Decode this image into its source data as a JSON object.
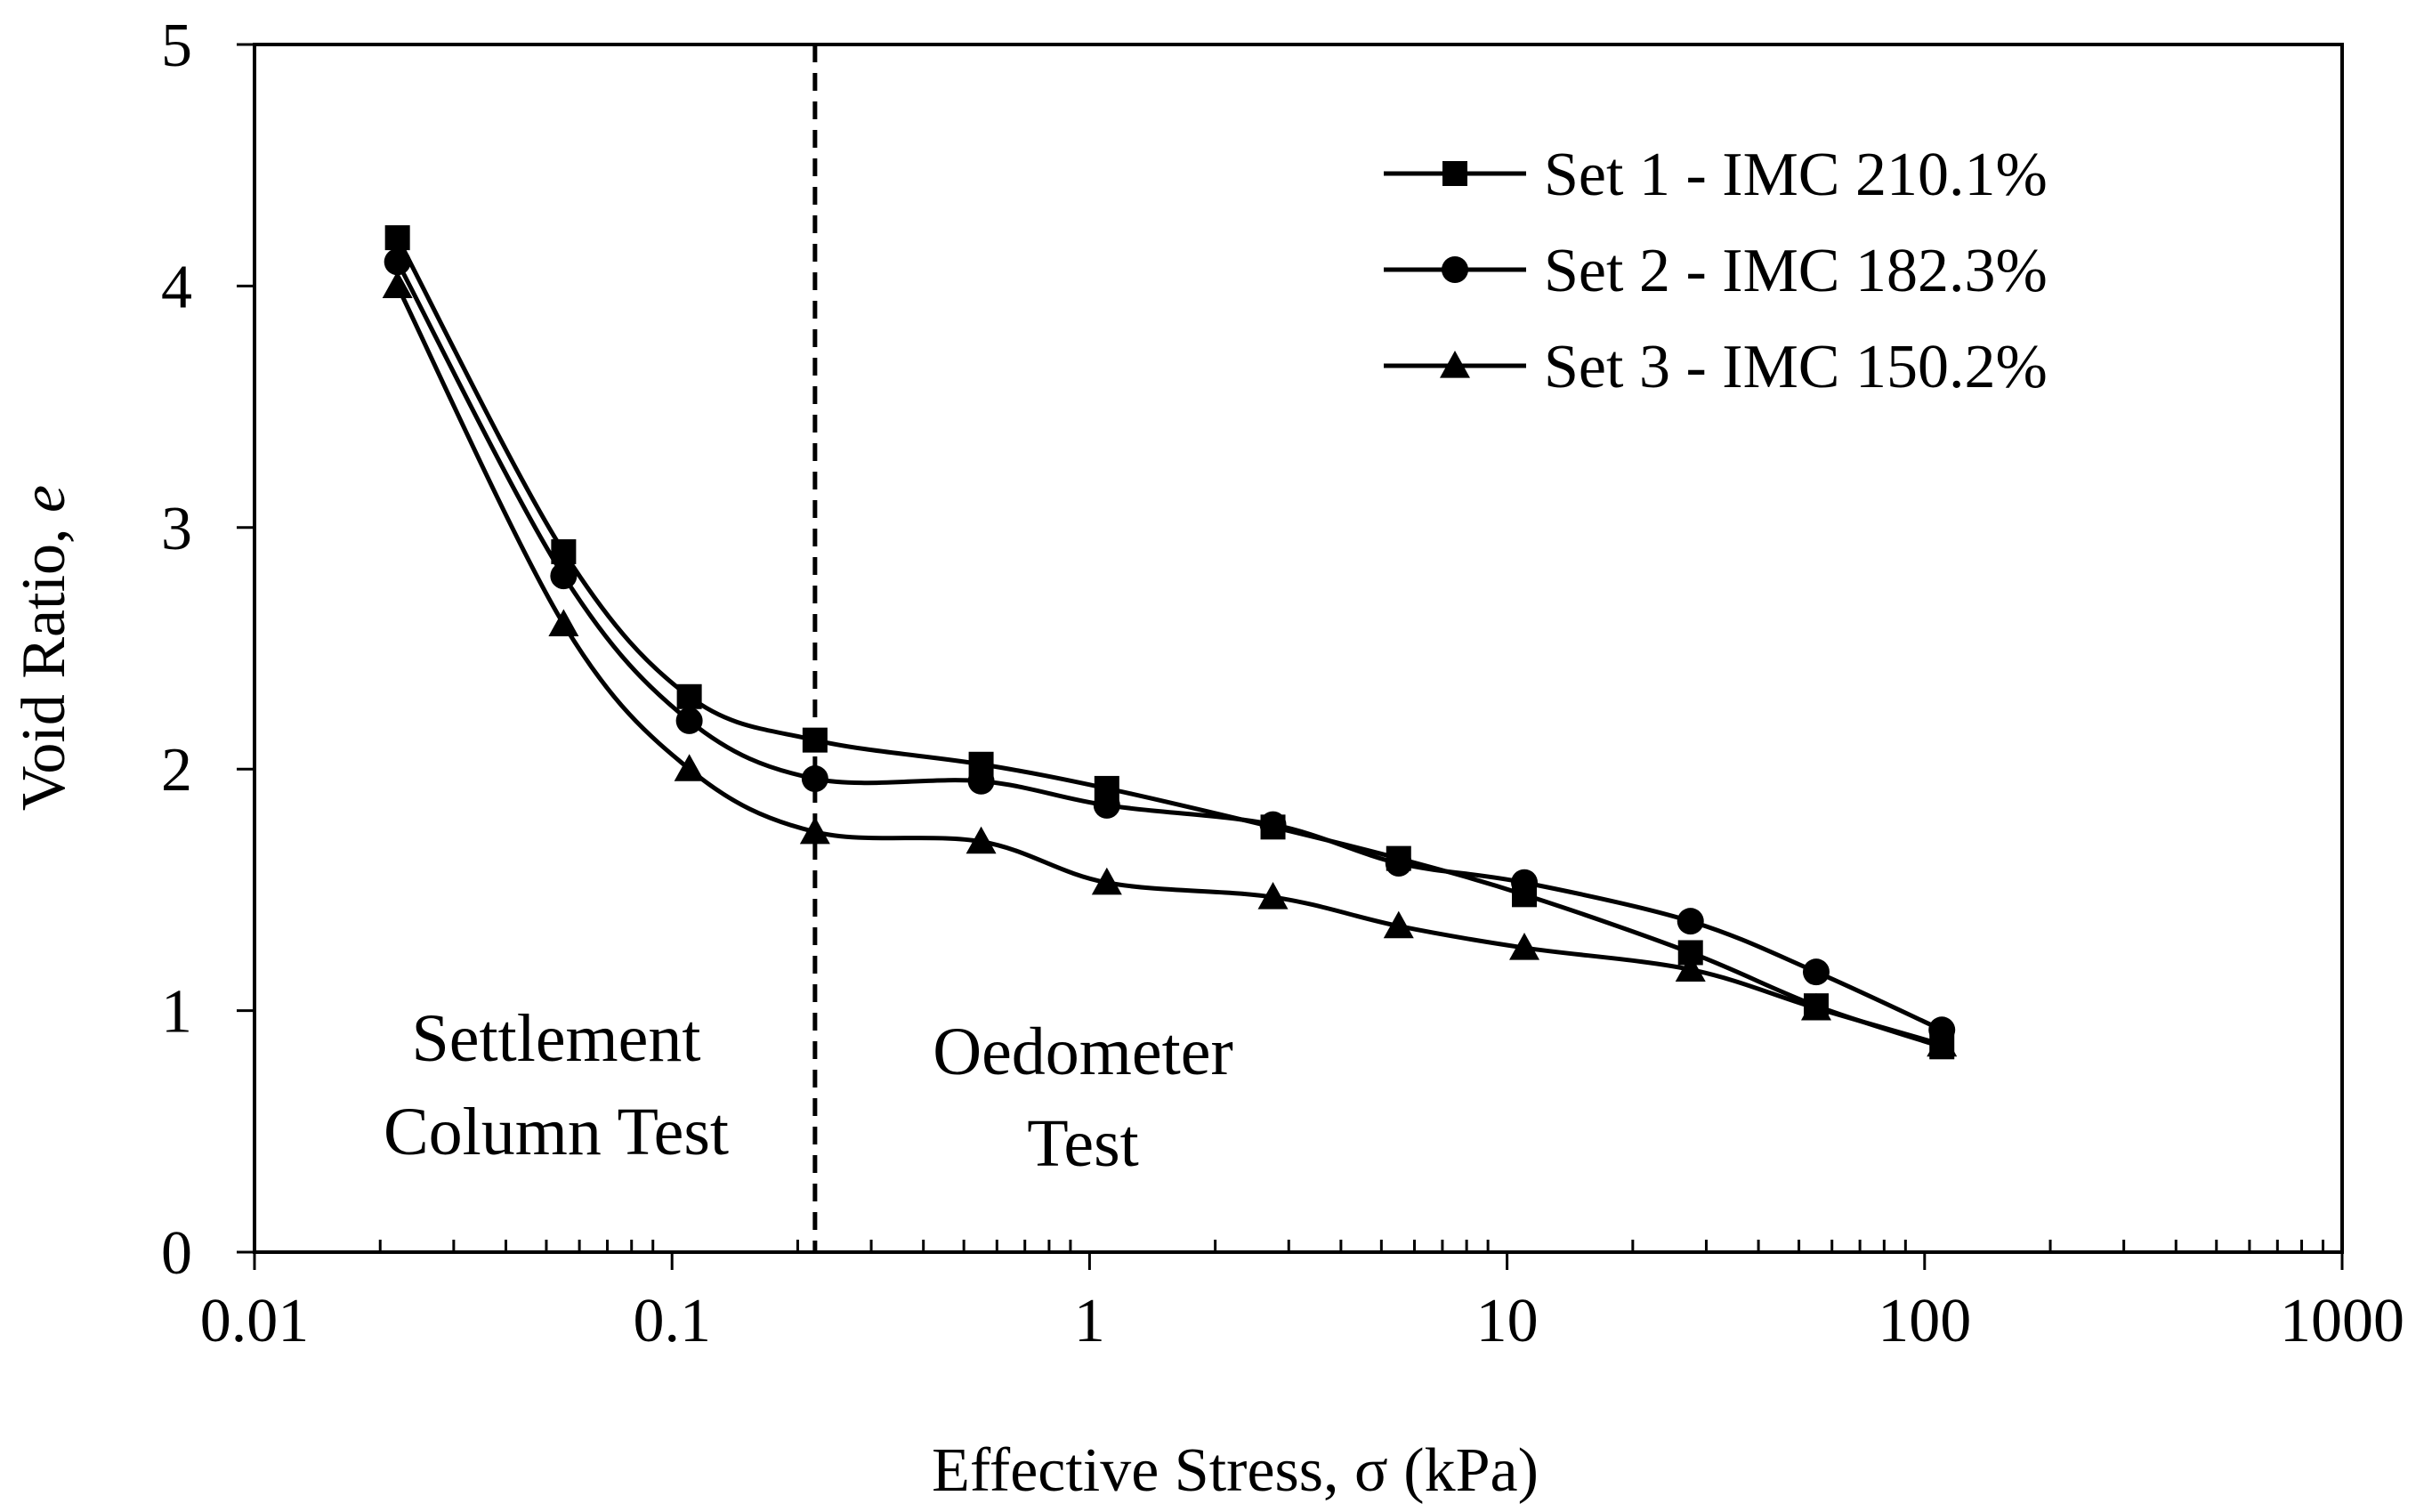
{
  "chart_data": {
    "type": "line",
    "title": "",
    "xlabel": "Effective Stress, σ (kPa)",
    "ylabel_main": "Void Ratio, ",
    "ylabel_var": "e",
    "xscale": "log",
    "xlim": [
      0.01,
      1000
    ],
    "ylim": [
      0,
      5
    ],
    "x_tick_labels": [
      "0.01",
      "0.1",
      "1",
      "10",
      "100",
      "1000"
    ],
    "y_tick_labels": [
      "0",
      "1",
      "2",
      "3",
      "4",
      "5"
    ],
    "grid": false,
    "legend_position": "top-right",
    "divider_x": 0.22,
    "annotations": {
      "settlement_line1": "Settlement",
      "settlement_line2": "Column Test",
      "oedometer_line1": "Oedometer",
      "oedometer_line2": "Test"
    },
    "x": [
      0.022,
      0.055,
      0.11,
      0.22,
      0.55,
      1.1,
      2.75,
      5.5,
      11,
      27.5,
      55,
      110
    ],
    "series": [
      {
        "name": "Set 1 - IMC 210.1%",
        "marker": "square",
        "values": [
          4.2,
          2.9,
          2.3,
          2.12,
          2.02,
          1.92,
          1.76,
          1.63,
          1.48,
          1.24,
          1.02,
          0.85
        ]
      },
      {
        "name": "Set 2 - IMC 182.3%",
        "marker": "circle",
        "values": [
          4.1,
          2.8,
          2.2,
          1.96,
          1.95,
          1.85,
          1.77,
          1.61,
          1.53,
          1.37,
          1.16,
          0.92
        ]
      },
      {
        "name": "Set 3 - IMC 150.2%",
        "marker": "triangle",
        "values": [
          4.0,
          2.6,
          2.0,
          1.74,
          1.7,
          1.53,
          1.47,
          1.35,
          1.26,
          1.17,
          1.01,
          0.86
        ]
      }
    ]
  }
}
